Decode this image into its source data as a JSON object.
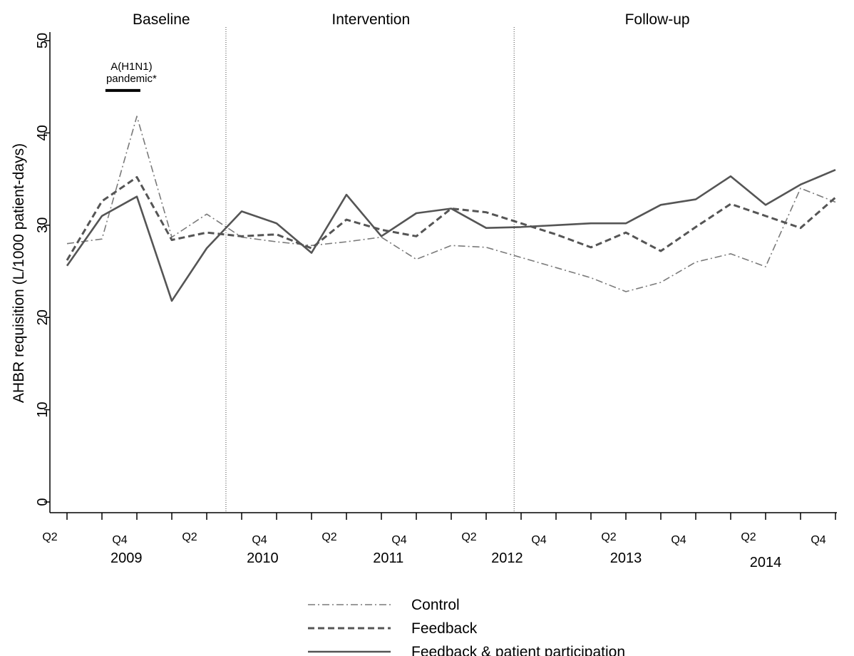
{
  "chart_data": {
    "type": "line",
    "ylabel": "AHBR requisition (L/1000 patient-days)",
    "ylim": [
      0,
      50
    ],
    "yticks": [
      0,
      10,
      20,
      30,
      40,
      50
    ],
    "x_count": 23,
    "x_tick_labels": [
      {
        "i": 1,
        "label": "Q2"
      },
      {
        "i": 3,
        "label": "Q4"
      },
      {
        "i": 5,
        "label": "Q2"
      },
      {
        "i": 7,
        "label": "Q4"
      },
      {
        "i": 9,
        "label": "Q2"
      },
      {
        "i": 11,
        "label": "Q4"
      },
      {
        "i": 13,
        "label": "Q2"
      },
      {
        "i": 15,
        "label": "Q4"
      },
      {
        "i": 17,
        "label": "Q2"
      },
      {
        "i": 19,
        "label": "Q4"
      },
      {
        "i": 21,
        "label": "Q2"
      },
      {
        "i": 23,
        "label": "Q4"
      }
    ],
    "year_labels": [
      {
        "pos": 2.7,
        "label": "2009"
      },
      {
        "pos": 6.6,
        "label": "2010"
      },
      {
        "pos": 10.2,
        "label": "2011"
      },
      {
        "pos": 13.6,
        "label": "2012"
      },
      {
        "pos": 17.0,
        "label": "2013"
      },
      {
        "pos": 21.0,
        "label": "2014"
      }
    ],
    "phases": [
      {
        "label": "Baseline",
        "center": 3.7
      },
      {
        "label": "Intervention",
        "center": 9.7
      },
      {
        "label": "Follow-up",
        "center": 17.9
      }
    ],
    "phase_boundaries": [
      5.55,
      13.8
    ],
    "annotation": {
      "lines": [
        "A(H1N1)",
        "pandemic*"
      ],
      "x_start": 2.1,
      "x_end": 3.1,
      "y": 44.6
    },
    "series": [
      {
        "name": "Control",
        "style": "dashdot",
        "color": "#7a7a7a",
        "values": [
          28.0,
          28.5,
          41.8,
          28.7,
          31.2,
          28.7,
          28.2,
          27.8,
          28.2,
          28.7,
          26.3,
          27.8,
          27.6,
          26.5,
          25.4,
          24.3,
          22.8,
          23.8,
          26.0,
          26.9,
          25.5,
          34.0,
          32.5
        ]
      },
      {
        "name": "Feedback",
        "style": "dashed",
        "color": "#555555",
        "values": [
          26.2,
          32.6,
          35.2,
          28.4,
          29.2,
          28.8,
          29.0,
          27.5,
          30.6,
          29.5,
          28.8,
          31.8,
          31.4,
          30.2,
          29.0,
          27.6,
          29.2,
          27.2,
          29.8,
          32.3,
          31.0,
          29.7,
          33.0
        ]
      },
      {
        "name": "Feedback & patient participation",
        "style": "solid",
        "color": "#555555",
        "values": [
          25.6,
          31.0,
          33.1,
          21.8,
          27.5,
          31.5,
          30.2,
          27.0,
          33.3,
          28.8,
          31.3,
          31.8,
          29.7,
          29.8,
          30.0,
          30.2,
          30.2,
          32.2,
          32.8,
          35.3,
          32.2,
          34.4,
          36.0
        ]
      }
    ]
  }
}
